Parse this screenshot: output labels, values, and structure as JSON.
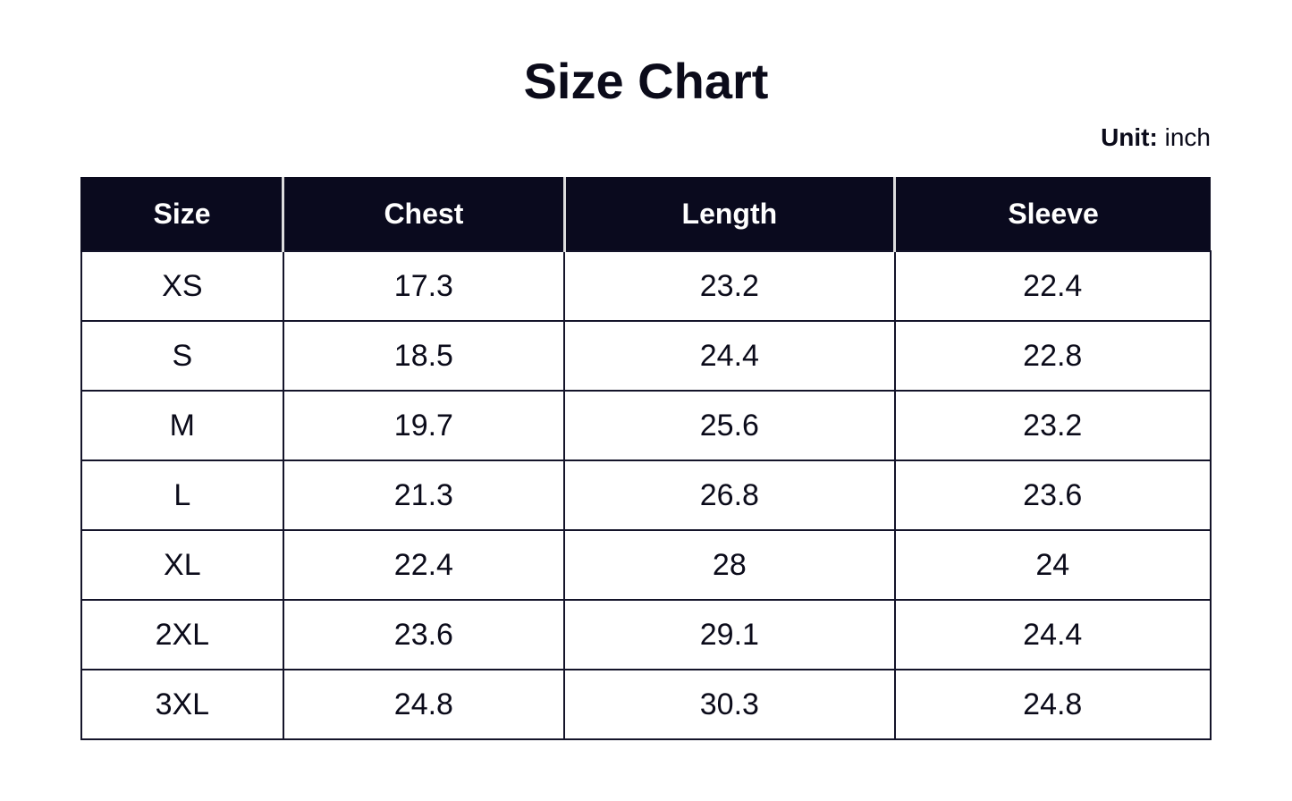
{
  "header": {
    "title": "Size Chart",
    "unit_label": "Unit:",
    "unit": "inch"
  },
  "table": {
    "columns": [
      "Size",
      "Chest",
      "Length",
      "Sleeve"
    ],
    "rows": [
      [
        "XS",
        "17.3",
        "23.2",
        "22.4"
      ],
      [
        "S",
        "18.5",
        "24.4",
        "22.8"
      ],
      [
        "M",
        "19.7",
        "25.6",
        "23.2"
      ],
      [
        "L",
        "21.3",
        "26.8",
        "23.6"
      ],
      [
        "XL",
        "22.4",
        "28",
        "24"
      ],
      [
        "2XL",
        "23.6",
        "29.1",
        "24.4"
      ],
      [
        "3XL",
        "24.8",
        "30.3",
        "24.8"
      ]
    ]
  }
}
